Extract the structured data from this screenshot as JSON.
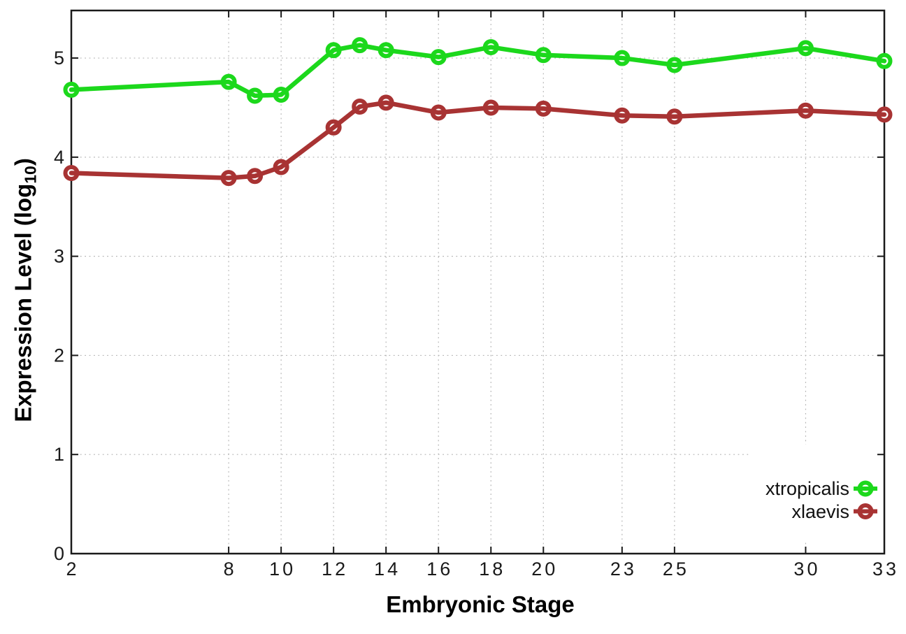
{
  "labels": {
    "ylabel_pre": "Expression Level (log",
    "ylabel_sub": "10",
    "ylabel_post": ")"
  },
  "chart_data": {
    "type": "line",
    "title": "",
    "xlabel": "Embryonic Stage",
    "ylabel": "Expression Level (log10)",
    "x": [
      2,
      8,
      9,
      10,
      12,
      13,
      14,
      16,
      18,
      20,
      23,
      25,
      30,
      33
    ],
    "xticks": [
      2,
      8,
      10,
      12,
      14,
      16,
      18,
      20,
      23,
      25,
      30,
      33
    ],
    "yticks": [
      0,
      1,
      2,
      3,
      4,
      5
    ],
    "xlim": [
      2,
      33
    ],
    "ylim": [
      0,
      5.48
    ],
    "grid": true,
    "grid_style": "dotted",
    "legend_position": "inside-bottom-right",
    "marker": "open-circle",
    "series": [
      {
        "name": "xtropicalis",
        "color": "#1cd81c",
        "values": [
          4.68,
          4.76,
          4.62,
          4.63,
          5.08,
          5.13,
          5.08,
          5.01,
          5.11,
          5.03,
          5.0,
          4.93,
          5.1,
          4.97
        ]
      },
      {
        "name": "xlaevis",
        "color": "#a83333",
        "values": [
          3.84,
          3.79,
          3.81,
          3.9,
          4.3,
          4.51,
          4.55,
          4.45,
          4.5,
          4.49,
          4.42,
          4.41,
          4.47,
          4.43
        ]
      }
    ]
  }
}
